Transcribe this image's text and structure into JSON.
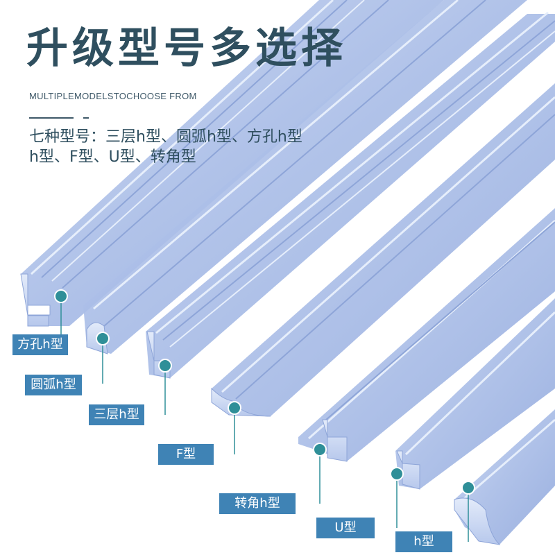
{
  "header": {
    "title": "升级型号多选择",
    "subtitle": "MULTIPLEMODELSTOCHOOSE FROM",
    "description_line1": "七种型号：三层h型、圆弧h型、方孔h型",
    "description_line2": "h型、F型、U型、转角型"
  },
  "profiles": [
    {
      "id": "square-hole-h",
      "label": "方孔h型"
    },
    {
      "id": "arc-h",
      "label": "圆弧h型"
    },
    {
      "id": "triple-h",
      "label": "三层h型"
    },
    {
      "id": "f",
      "label": "F型"
    },
    {
      "id": "corner-h",
      "label": "转角h型"
    },
    {
      "id": "u",
      "label": "U型"
    },
    {
      "id": "h",
      "label": "h型"
    }
  ],
  "colors": {
    "title": "#2f4f5f",
    "label_bg": "#3f83b5",
    "marker": "#2f8f98",
    "profile_base": "#a9bde6",
    "profile_highlight": "#dfe8f8",
    "profile_shadow": "#7f97cf"
  }
}
